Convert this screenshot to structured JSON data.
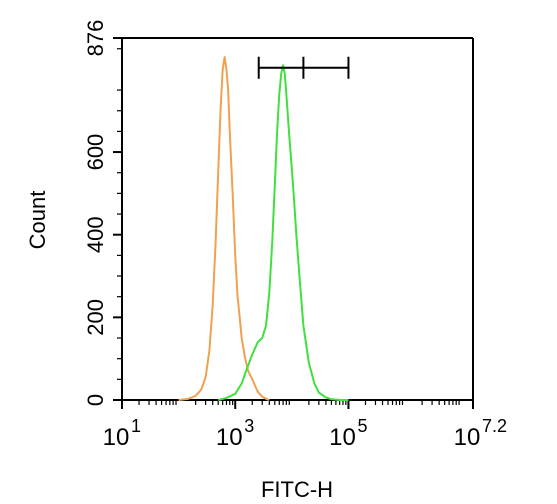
{
  "chart_data": {
    "type": "line",
    "title": "",
    "xlabel": "FITC-H",
    "ylabel": "Count",
    "x_scale": "log",
    "xlim": [
      10,
      15848931.92
    ],
    "ylim": [
      0,
      876
    ],
    "x_ticks": [
      {
        "value": 10,
        "base": "10",
        "exp": "1"
      },
      {
        "value": 1000,
        "base": "10",
        "exp": "3"
      },
      {
        "value": 100000,
        "base": "10",
        "exp": "5"
      },
      {
        "value": 15848931.92,
        "base": "10",
        "exp": "7.2"
      }
    ],
    "y_ticks": [
      "0",
      "200",
      "400",
      "600",
      "876"
    ],
    "y_tick_values": [
      0,
      200,
      400,
      600,
      876
    ],
    "grid": false,
    "series": [
      {
        "color": "#f0a050",
        "x": [
          100,
          150,
          200,
          250,
          300,
          350,
          400,
          450,
          500,
          550,
          600,
          650,
          700,
          750,
          800,
          900,
          1000,
          1100,
          1200,
          1300,
          1500,
          1700,
          2000,
          2500,
          3000,
          3500,
          4000
        ],
        "y": [
          0,
          3,
          10,
          25,
          55,
          120,
          230,
          380,
          550,
          700,
          800,
          830,
          800,
          750,
          650,
          500,
          350,
          250,
          200,
          150,
          100,
          70,
          50,
          20,
          8,
          3,
          0
        ]
      },
      {
        "color": "#40e040",
        "x": [
          500,
          700,
          1000,
          1300,
          1600,
          2000,
          2500,
          3000,
          3500,
          4000,
          4500,
          5000,
          5500,
          6000,
          6500,
          7000,
          7500,
          8000,
          9000,
          10000,
          11000,
          12000,
          14000,
          16000,
          20000,
          25000,
          30000,
          40000,
          50000,
          70000,
          100000
        ],
        "y": [
          0,
          5,
          15,
          40,
          75,
          110,
          140,
          150,
          180,
          260,
          380,
          520,
          650,
          740,
          790,
          810,
          790,
          740,
          640,
          560,
          480,
          400,
          280,
          180,
          90,
          40,
          18,
          6,
          2,
          0,
          0
        ]
      }
    ],
    "annotations": [
      {
        "type": "range-bar",
        "x_start": 2600,
        "x_mid": 16000,
        "x_end": 100000,
        "y": 804
      }
    ]
  }
}
